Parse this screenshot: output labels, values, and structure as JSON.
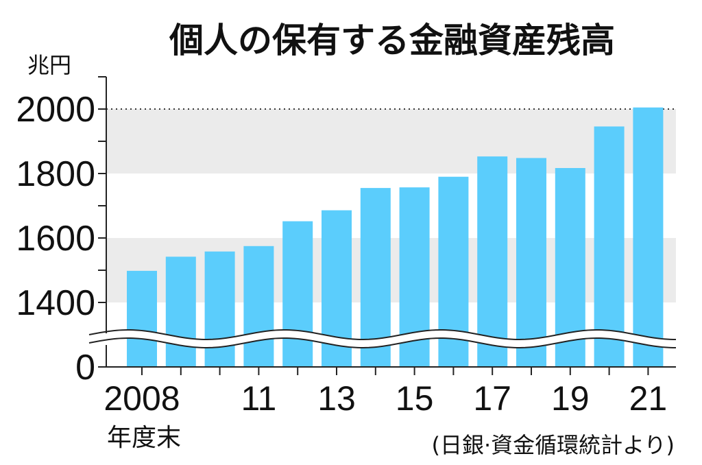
{
  "chart_data": {
    "type": "bar",
    "title": "個人の保有する金融資産残高",
    "unit": "兆円",
    "xlabel": "年度末",
    "source": "(日銀·資金循環統計より)",
    "categories": [
      "2008",
      "2009",
      "2010",
      "2011",
      "2012",
      "2013",
      "2014",
      "2015",
      "2016",
      "2017",
      "2018",
      "2019",
      "2020",
      "2021"
    ],
    "x_tick_labels": [
      {
        "index": 0,
        "label": "2008"
      },
      {
        "index": 3,
        "label": "11"
      },
      {
        "index": 5,
        "label": "13"
      },
      {
        "index": 7,
        "label": "15"
      },
      {
        "index": 9,
        "label": "17"
      },
      {
        "index": 11,
        "label": "19"
      },
      {
        "index": 13,
        "label": "21"
      }
    ],
    "values": [
      1498,
      1542,
      1558,
      1575,
      1652,
      1686,
      1755,
      1757,
      1790,
      1853,
      1848,
      1817,
      1946,
      2005
    ],
    "y_ticks": [
      {
        "value": 0,
        "label": "0"
      },
      {
        "value": 1400,
        "label": "1400"
      },
      {
        "value": 1600,
        "label": "1600"
      },
      {
        "value": 1800,
        "label": "1800"
      },
      {
        "value": 2000,
        "label": "2000"
      }
    ],
    "ylim": [
      0,
      2100
    ],
    "axis_break": true,
    "reference_line": 2000,
    "grid": "alternating bands",
    "legend": "none"
  },
  "colors": {
    "bar": "#5bcdfc",
    "band": "#ebebeb",
    "text": "#111111",
    "axis": "#222222"
  }
}
